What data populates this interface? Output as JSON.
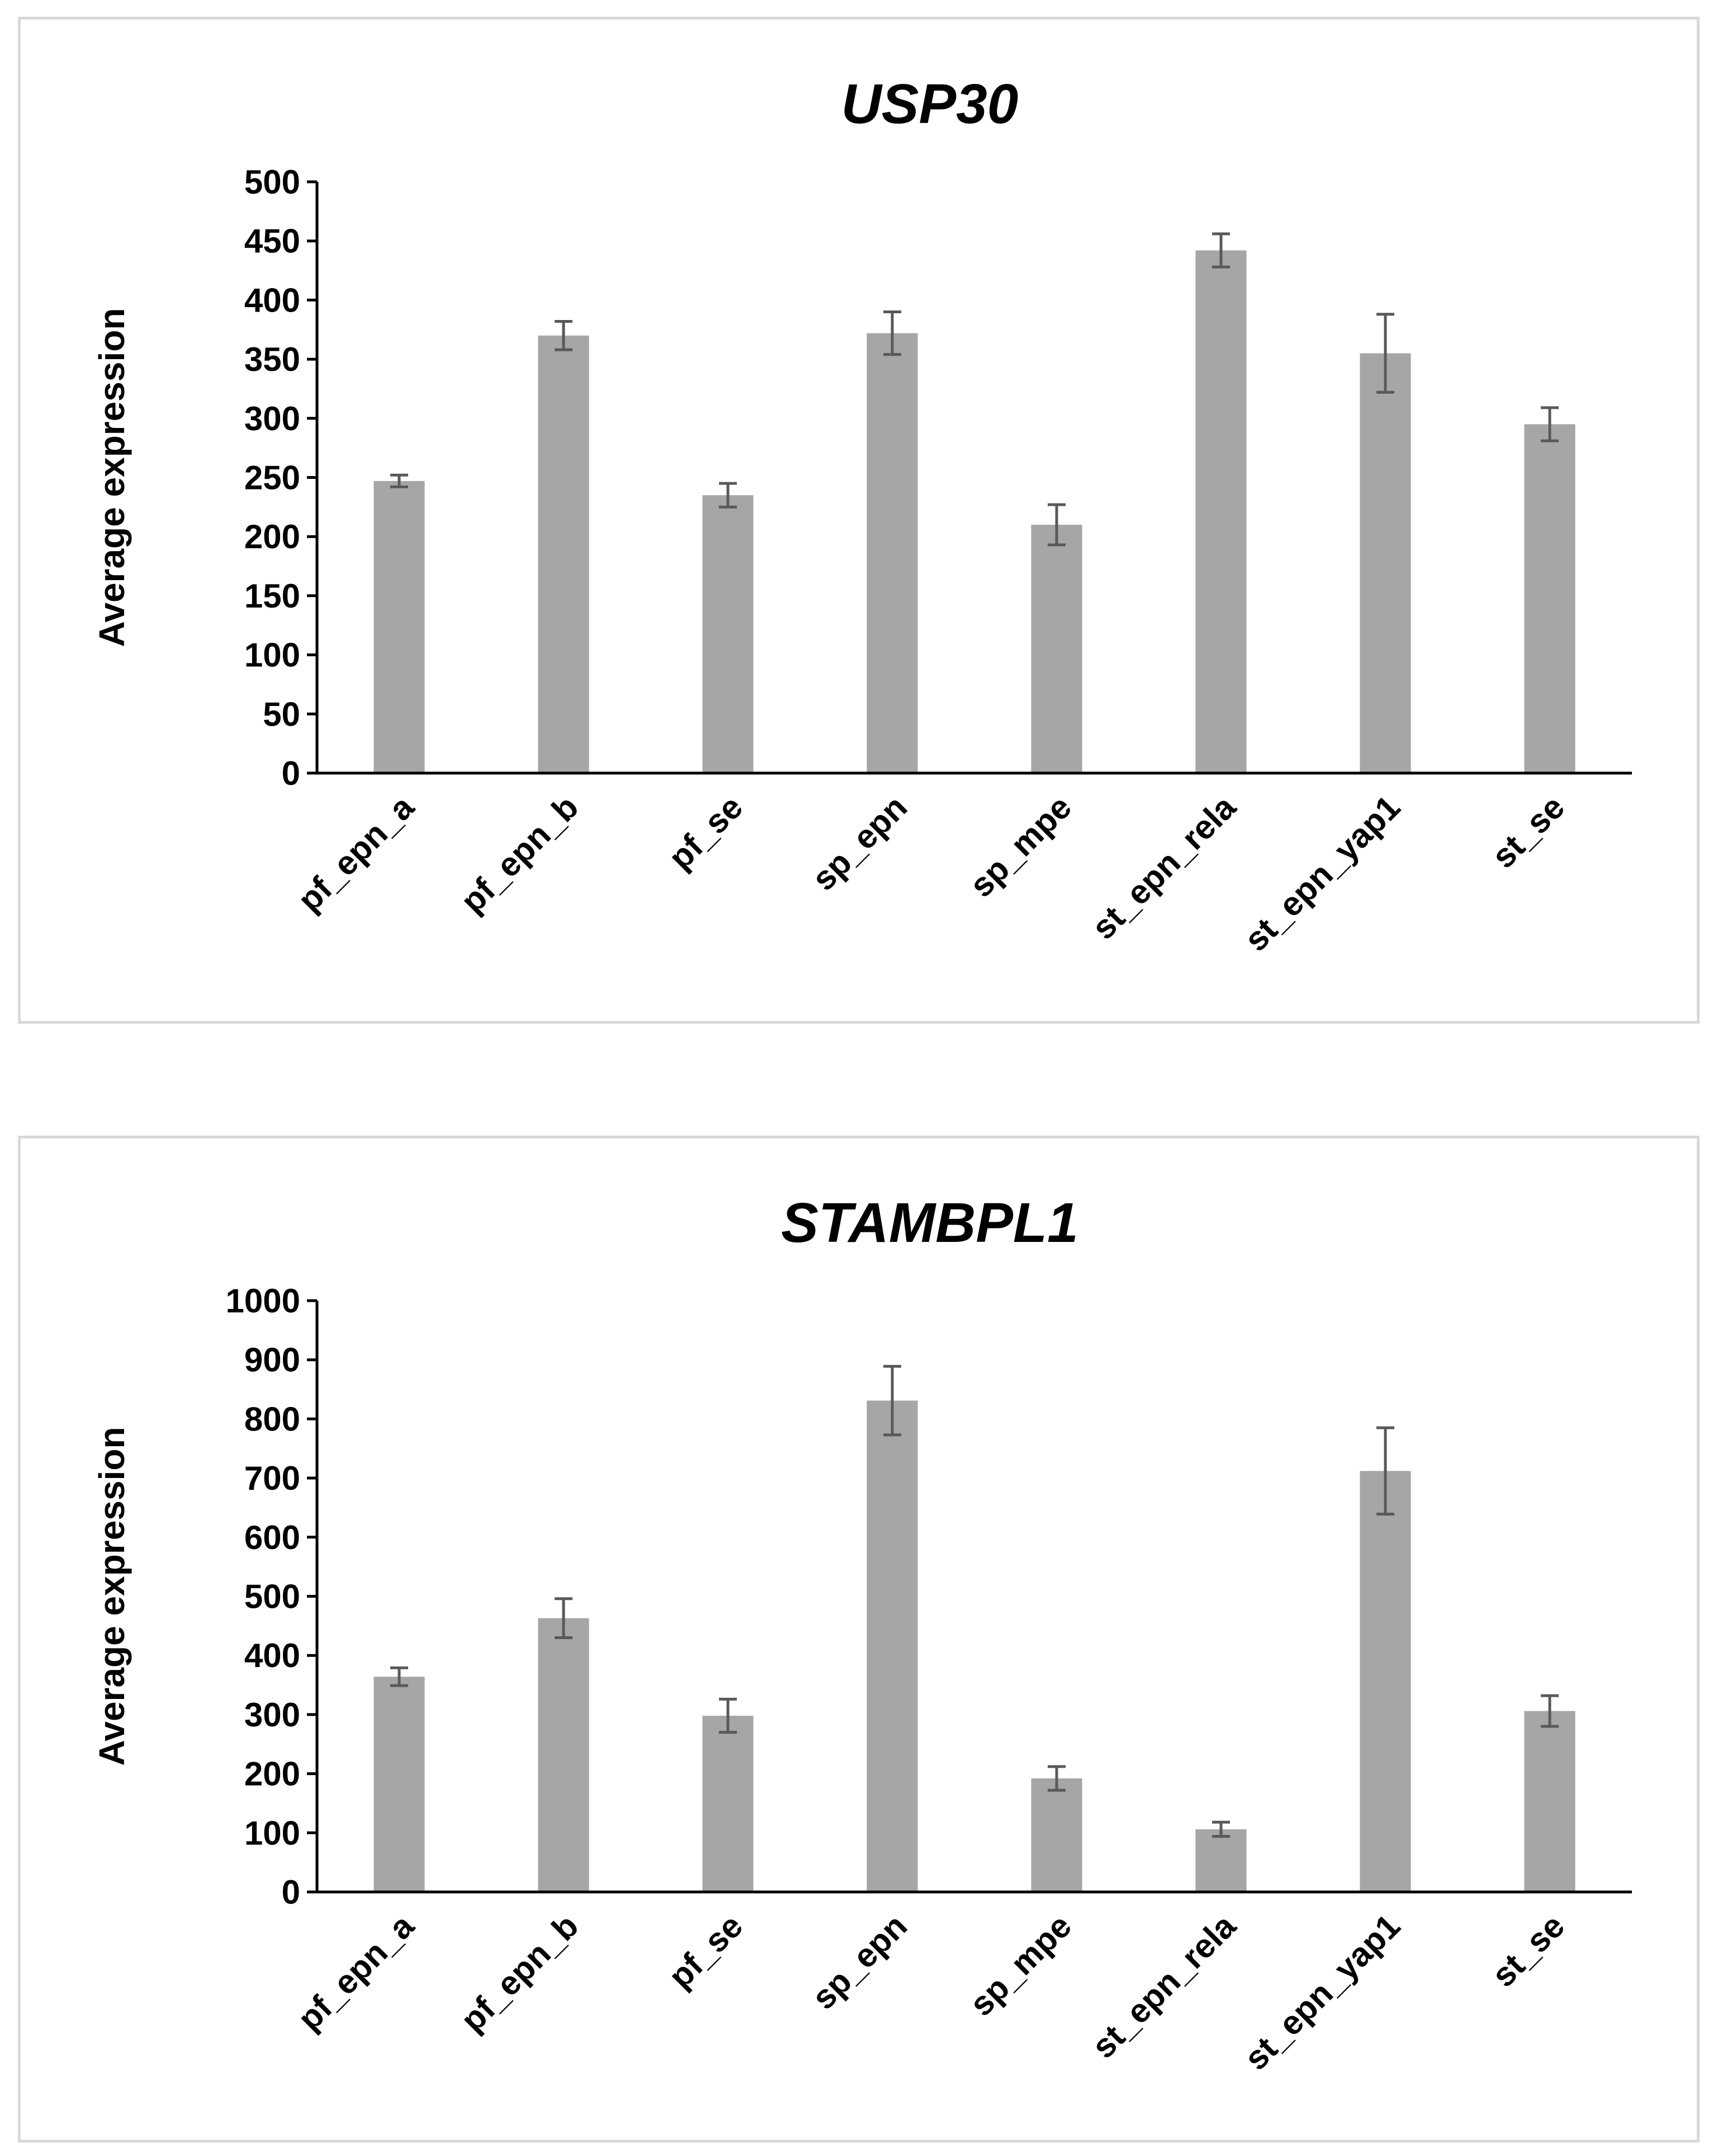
{
  "chart_data": [
    {
      "type": "bar",
      "title": "USP30",
      "xlabel": "",
      "ylabel": "Average expression",
      "ylim": [
        0,
        500
      ],
      "ytick_step": 50,
      "categories": [
        "pf_epn_a",
        "pf_epn_b",
        "pf_se",
        "sp_epn",
        "sp_mpe",
        "st_epn_rela",
        "st_epn_yap1",
        "st_se"
      ],
      "values": [
        247,
        370,
        235,
        372,
        210,
        442,
        355,
        295
      ],
      "errors": [
        5,
        12,
        10,
        18,
        17,
        14,
        33,
        14
      ],
      "bar_color": "#a6a6a6",
      "error_color": "#595959"
    },
    {
      "type": "bar",
      "title": "STAMBPL1",
      "xlabel": "",
      "ylabel": "Average expression",
      "ylim": [
        0,
        1000
      ],
      "ytick_step": 100,
      "categories": [
        "pf_epn_a",
        "pf_epn_b",
        "pf_se",
        "sp_epn",
        "sp_mpe",
        "st_epn_rela",
        "st_epn_yap1",
        "st_se"
      ],
      "values": [
        364,
        463,
        298,
        831,
        192,
        106,
        712,
        306
      ],
      "errors": [
        15,
        33,
        28,
        58,
        20,
        12,
        73,
        26
      ],
      "bar_color": "#a6a6a6",
      "error_color": "#595959"
    }
  ]
}
